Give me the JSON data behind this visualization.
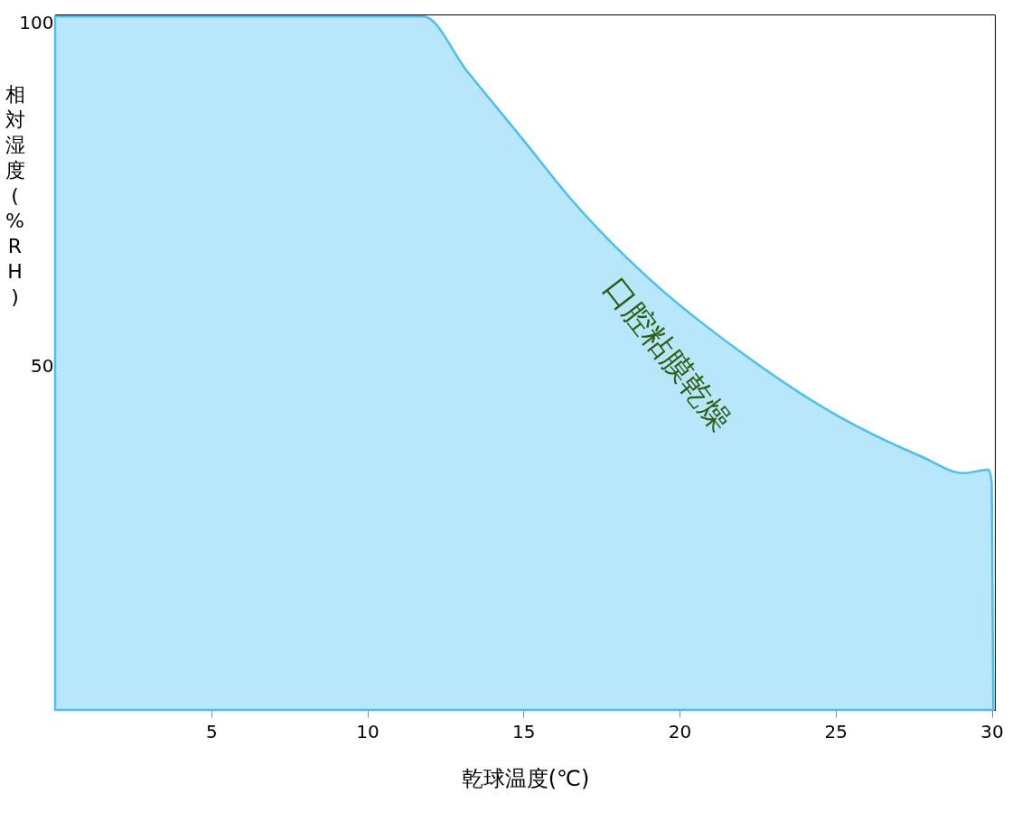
{
  "chart_data": {
    "type": "area",
    "xlabel": "乾球温度(℃)",
    "ylabel": "相対湿度(%RH)",
    "x": [
      0,
      11.8,
      13.2,
      15,
      16.6,
      19.1,
      22,
      25,
      27.7,
      29.1,
      29.9,
      30.0,
      30.05
    ],
    "series": [
      {
        "color": "#b8e6fa",
        "values": [
          101,
          101,
          93,
          83,
          74,
          62.5,
          52,
          43,
          37,
          34.5,
          35,
          33,
          0
        ]
      }
    ],
    "xlim": [
      0,
      30.1
    ],
    "ylim": [
      0,
      101.3
    ],
    "xticks": [
      5,
      10,
      15,
      20,
      25,
      30
    ],
    "yticks": [
      50,
      100
    ],
    "annotations": [
      "口腔粘膜乾燥"
    ],
    "grid": false
  }
}
